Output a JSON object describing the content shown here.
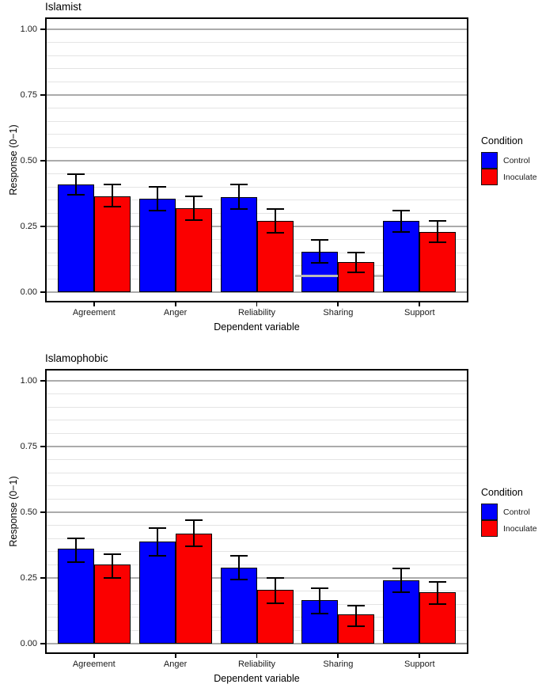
{
  "colors": {
    "control": "#0000FE",
    "inoculate": "#FB0000",
    "major_grid": "#ABABAB",
    "minor_grid": "#E4E4E4",
    "panel_border": "#000000",
    "error_bar": "#000000",
    "artifact_line": "#B9B9B9"
  },
  "legend": {
    "title": "Condition",
    "entries": [
      {
        "label": "Control",
        "color_key": "control"
      },
      {
        "label": "Inoculate",
        "color_key": "inoculate"
      }
    ]
  },
  "axes": {
    "y_label": "Response (0−1)",
    "x_label": "Dependent variable",
    "y_ticks": [
      "1.00",
      "0.75",
      "0.50",
      "0.25",
      "0.00"
    ],
    "y_tick_values": [
      1.0,
      0.75,
      0.5,
      0.25,
      0.0
    ],
    "minor_step": 0.05
  },
  "chart_data": [
    {
      "type": "bar",
      "title": "Islamist",
      "xlabel": "Dependent variable",
      "ylabel": "Response (0−1)",
      "ylim": [
        0,
        1
      ],
      "grid": "major 0.25 + minor 0.05",
      "legend_position": "right",
      "legend_title": "Condition",
      "categories": [
        "Agreement",
        "Anger",
        "Reliability",
        "Sharing",
        "Support"
      ],
      "series": [
        {
          "name": "Control",
          "color_key": "control",
          "values": [
            0.41,
            0.355,
            0.36,
            0.155,
            0.27
          ],
          "err_low": [
            0.37,
            0.31,
            0.315,
            0.11,
            0.23
          ],
          "err_high": [
            0.45,
            0.4,
            0.41,
            0.2,
            0.31
          ]
        },
        {
          "name": "Inoculate",
          "color_key": "inoculate",
          "values": [
            0.365,
            0.32,
            0.27,
            0.115,
            0.23
          ],
          "err_low": [
            0.325,
            0.275,
            0.225,
            0.075,
            0.19
          ],
          "err_high": [
            0.41,
            0.365,
            0.315,
            0.15,
            0.27
          ]
        }
      ],
      "artifact": {
        "description": "stray light-gray gridline segment across Sharing Control bar, hidden behind Inoculate bar",
        "value": 0.062,
        "x_from": 316,
        "x_to": 427
      }
    },
    {
      "type": "bar",
      "title": "Islamophobic",
      "xlabel": "Dependent variable",
      "ylabel": "Response (0−1)",
      "ylim": [
        0,
        1
      ],
      "grid": "major 0.25 + minor 0.05",
      "legend_position": "right",
      "legend_title": "Condition",
      "categories": [
        "Agreement",
        "Anger",
        "Reliability",
        "Sharing",
        "Support"
      ],
      "series": [
        {
          "name": "Control",
          "color_key": "control",
          "values": [
            0.36,
            0.39,
            0.29,
            0.165,
            0.24
          ],
          "err_low": [
            0.31,
            0.335,
            0.245,
            0.115,
            0.195
          ],
          "err_high": [
            0.4,
            0.44,
            0.335,
            0.21,
            0.285
          ]
        },
        {
          "name": "Inoculate",
          "color_key": "inoculate",
          "values": [
            0.3,
            0.42,
            0.205,
            0.11,
            0.195
          ],
          "err_low": [
            0.25,
            0.37,
            0.155,
            0.065,
            0.15
          ],
          "err_high": [
            0.34,
            0.47,
            0.25,
            0.145,
            0.235
          ]
        }
      ]
    }
  ]
}
